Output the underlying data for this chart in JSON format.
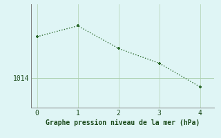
{
  "x": [
    0,
    1,
    2,
    3,
    4
  ],
  "y": [
    1018.2,
    1019.3,
    1017.0,
    1015.5,
    1013.1
  ],
  "line_color": "#2d6a2d",
  "marker_color": "#2d6a2d",
  "bg_color": "#dff5f5",
  "plot_bg_color": "#dff5f5",
  "xlabel": "Graphe pression niveau de la mer (hPa)",
  "xlabel_color": "#1a4a1a",
  "ytick_labels": [
    "1014"
  ],
  "ytick_values": [
    1014
  ],
  "xlim": [
    -0.15,
    4.35
  ],
  "ylim": [
    1011.0,
    1021.5
  ],
  "hgrid_color": "#a0c8a0",
  "vgrid_color": "#b0d0b0",
  "spine_color": "#808080",
  "font_color": "#1a4a1a",
  "line_width": 1.0,
  "marker_size": 3.5
}
